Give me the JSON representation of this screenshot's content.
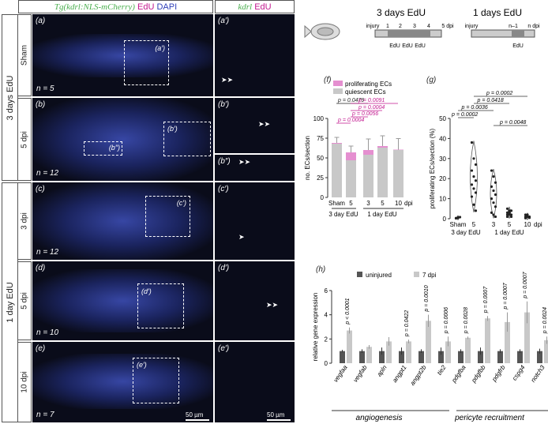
{
  "figure": {
    "headers": {
      "tg_label": "Tg(kdrl:NLS-mCherry)",
      "edu": "EdU",
      "dapi": "DAPI",
      "kdrl": "kdrl",
      "edu2": "EdU"
    },
    "side_labels": {
      "three_day": "3 days EdU",
      "one_day": "1 day EdU"
    },
    "row_labels": [
      "Sham",
      "5 dpi",
      "3 dpi",
      "5 dpi",
      "10 dpi"
    ],
    "panels": {
      "a": "(a)",
      "b": "(b)",
      "c": "(c)",
      "d": "(d)",
      "e": "(e)",
      "a_p": "(a′)",
      "b_p": "(b′)",
      "b_pp": "(b″)",
      "c_p": "(c′)",
      "d_p": "(d′)",
      "e_p": "(e′)",
      "f": "(f)",
      "g": "(g)",
      "h": "(h)"
    },
    "n_labels": [
      "n = 5",
      "n = 12",
      "n = 12",
      "n = 10",
      "n = 7"
    ],
    "scale_bar": "50 µm",
    "schematic": {
      "three_title": "3 days EdU",
      "one_title": "1 days EdU",
      "three_ticks": [
        "injury",
        "1",
        "2",
        "3",
        "4",
        "5 dpi"
      ],
      "three_edu": [
        "EdU",
        "EdU",
        "EdU"
      ],
      "one_ticks": [
        "injury",
        "n–1",
        "n dpi"
      ],
      "one_edu": "EdU"
    }
  },
  "chart_data": [
    {
      "id": "f",
      "type": "bar",
      "ylabel": "no. ECs/section",
      "ylim": [
        0,
        100
      ],
      "yticks": [
        0,
        25,
        50,
        75,
        100
      ],
      "categories": [
        "Sham",
        "5",
        "3",
        "5",
        "10"
      ],
      "x_suffix": "dpi",
      "groups": [
        "3 day EdU",
        "1 day EdU"
      ],
      "legend": [
        "proliferating ECs",
        "quiescent ECs"
      ],
      "series": [
        {
          "name": "quiescent ECs",
          "color": "#c8c8c8",
          "values": [
            68,
            47,
            54,
            63,
            60
          ]
        },
        {
          "name": "proliferating ECs",
          "color": "#e58fd0",
          "values": [
            1,
            10,
            6,
            2,
            0.5
          ]
        }
      ],
      "errors": [
        7,
        8,
        14,
        13,
        14
      ],
      "annotations": [
        {
          "text": "p = 0.0479",
          "pair": [
            0,
            2
          ],
          "color": "#222"
        },
        {
          "text": "p = 0.0091",
          "pair": [
            1,
            4
          ],
          "color": "#c2188f"
        },
        {
          "text": "p = 0.0004",
          "pair": [
            1,
            3
          ],
          "color": "#c2188f"
        },
        {
          "text": "p = 0.0056",
          "pair": [
            1,
            2
          ],
          "color": "#c2188f"
        },
        {
          "text": "p = 0.0004",
          "pair": [
            0,
            1
          ],
          "color": "#c2188f"
        }
      ]
    },
    {
      "id": "g",
      "type": "scatter",
      "ylabel": "proliferating ECs/section (%)",
      "ylim": [
        0,
        50
      ],
      "yticks": [
        0,
        10,
        20,
        30,
        40,
        50
      ],
      "categories": [
        "Sham",
        "5",
        "3",
        "5",
        "10"
      ],
      "x_suffix": "dpi",
      "groups": [
        "3 day EdU",
        "1 day EdU"
      ],
      "points": [
        [
          0.2,
          0.5,
          0.8,
          0.3,
          0.6
        ],
        [
          38,
          30,
          27,
          24,
          21,
          19,
          17,
          15,
          13,
          11,
          7,
          4
        ],
        [
          24,
          21,
          18,
          16,
          14,
          12,
          10,
          8,
          6,
          3,
          2,
          1
        ],
        [
          5,
          4,
          4,
          3,
          3,
          2,
          2,
          2,
          1,
          1
        ],
        [
          2,
          2,
          1,
          1,
          1,
          0.5,
          0.3
        ]
      ],
      "annotations": [
        {
          "text": "p = 0.0002",
          "pair": [
            1,
            4
          ]
        },
        {
          "text": "p = 0.0418",
          "pair": [
            1,
            3
          ]
        },
        {
          "text": "p = 0.0036",
          "pair": [
            0,
            2
          ]
        },
        {
          "text": "p = 0.0002",
          "pair": [
            0,
            1
          ]
        },
        {
          "text": "p = 0.0048",
          "pair": [
            2,
            4
          ]
        }
      ]
    },
    {
      "id": "h",
      "type": "bar",
      "ylabel": "relative gene expression",
      "ylim": [
        0,
        6
      ],
      "yticks": [
        0,
        2,
        4,
        6
      ],
      "categories": [
        "vegfaa",
        "vegfab",
        "apln",
        "angpt1",
        "angpt2b",
        "tie2",
        "pdgfba",
        "pdgfbb",
        "pdgfrb",
        "cspg4",
        "notch3"
      ],
      "series": [
        {
          "name": "uninjured",
          "color": "#555555",
          "values": [
            1,
            1,
            1,
            1,
            1,
            1,
            1,
            1,
            1,
            1,
            1
          ]
        },
        {
          "name": "7 dpi",
          "color": "#c8c8c8",
          "values": [
            2.7,
            1.35,
            1.8,
            1.8,
            3.5,
            1.8,
            2.1,
            3.7,
            3.4,
            4.2,
            1.9
          ]
        }
      ],
      "errors_uninjured": [
        0.1,
        0.15,
        0.3,
        0.3,
        0.15,
        0.3,
        0.15,
        0.3,
        0.15,
        0.15,
        0.2
      ],
      "errors_7dpi": [
        0.25,
        0.15,
        0.35,
        0.15,
        0.5,
        0.4,
        0.1,
        0.2,
        0.8,
        0.9,
        0.3
      ],
      "pvalues": [
        "p < 0.0001",
        "",
        "",
        "p = 0.0422",
        "p = 0.0010",
        "p = 0.0006",
        "p = 0.0028",
        "p = 0.0007",
        "p = 0.0007",
        "p = 0.0007",
        "p = 0.0024"
      ],
      "groups": [
        "angiogenesis",
        "pericyte recruitment"
      ]
    }
  ]
}
